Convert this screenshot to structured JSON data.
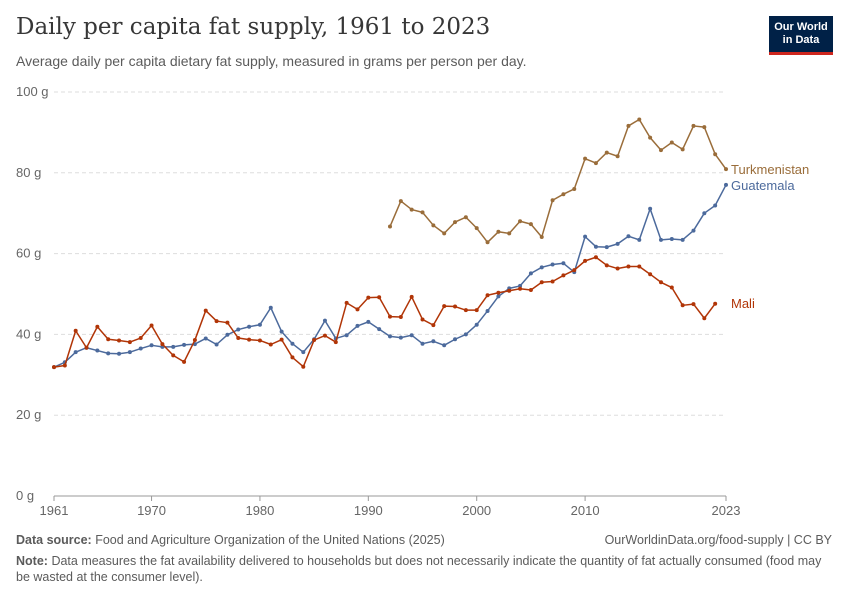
{
  "header": {
    "title": "Daily per capita fat supply, 1961 to 2023",
    "subtitle": "Average daily per capita dietary fat supply, measured in grams per person per day."
  },
  "logo": {
    "line1": "Our World",
    "line2": "in Data"
  },
  "footer": {
    "source_label": "Data source:",
    "source_text": "Food and Agriculture Organization of the United Nations (2025)",
    "link": "OurWorldinData.org/food-supply | CC BY",
    "note_label": "Note:",
    "note_text": "Data measures the fat availability delivered to households but does not necessarily indicate the quantity of fat actually consumed (food may be wasted at the consumer level)."
  },
  "chart_data": {
    "type": "line",
    "title": "Daily per capita fat supply, 1961 to 2023",
    "xlabel": "",
    "ylabel": "",
    "xlim": [
      1961,
      2023
    ],
    "ylim": [
      0,
      100
    ],
    "x_ticks": [
      "1961",
      "1970",
      "1980",
      "1990",
      "2000",
      "2010",
      "2023"
    ],
    "y_ticks": [
      "0 g",
      "20 g",
      "40 g",
      "60 g",
      "80 g",
      "100 g"
    ],
    "grid": "horizontal dashed",
    "legend": "labels at line ends",
    "series": [
      {
        "name": "Turkmenistan",
        "color": "#9a6d3a",
        "x": [
          1992,
          1993,
          1994,
          1995,
          1996,
          1997,
          1998,
          1999,
          2000,
          2001,
          2002,
          2003,
          2004,
          2005,
          2006,
          2007,
          2008,
          2009,
          2010,
          2011,
          2012,
          2013,
          2014,
          2015,
          2016,
          2017,
          2018,
          2019,
          2020,
          2021,
          2022,
          2023
        ],
        "values": [
          66.7,
          73.0,
          70.9,
          70.2,
          67.0,
          65.0,
          67.8,
          69.0,
          66.3,
          62.8,
          65.4,
          65.0,
          68.0,
          67.3,
          64.1,
          73.2,
          74.7,
          76.0,
          83.5,
          82.4,
          85.0,
          84.1,
          91.6,
          93.2,
          88.7,
          85.6,
          87.5,
          85.8,
          91.6,
          91.3,
          84.6,
          80.9
        ]
      },
      {
        "name": "Guatemala",
        "color": "#4c6a9c",
        "x": [
          1961,
          1962,
          1963,
          1964,
          1965,
          1966,
          1967,
          1968,
          1969,
          1970,
          1971,
          1972,
          1973,
          1974,
          1975,
          1976,
          1977,
          1978,
          1979,
          1980,
          1981,
          1982,
          1983,
          1984,
          1985,
          1986,
          1987,
          1988,
          1989,
          1990,
          1991,
          1992,
          1993,
          1994,
          1995,
          1996,
          1997,
          1998,
          1999,
          2000,
          2001,
          2002,
          2003,
          2004,
          2005,
          2006,
          2007,
          2008,
          2009,
          2010,
          2011,
          2012,
          2013,
          2014,
          2015,
          2016,
          2017,
          2018,
          2019,
          2020,
          2021,
          2022,
          2023
        ],
        "values": [
          31.9,
          33.1,
          35.6,
          36.7,
          36.0,
          35.3,
          35.2,
          35.6,
          36.5,
          37.3,
          36.9,
          36.9,
          37.4,
          37.6,
          39.0,
          37.5,
          39.9,
          41.2,
          41.9,
          42.4,
          46.6,
          40.7,
          37.7,
          35.6,
          38.8,
          43.4,
          39.0,
          39.8,
          42.1,
          43.1,
          41.3,
          39.5,
          39.2,
          39.8,
          37.7,
          38.3,
          37.3,
          38.8,
          40.0,
          42.4,
          45.8,
          49.4,
          51.4,
          52.0,
          55.1,
          56.6,
          57.3,
          57.6,
          55.4,
          64.2,
          61.7,
          61.6,
          62.4,
          64.3,
          63.4,
          71.1,
          63.4,
          63.6,
          63.4,
          65.7,
          70.0,
          71.9,
          77.0
        ]
      },
      {
        "name": "Mali",
        "color": "#b13507",
        "x": [
          1961,
          1962,
          1963,
          1964,
          1965,
          1966,
          1967,
          1968,
          1969,
          1970,
          1971,
          1972,
          1973,
          1974,
          1975,
          1976,
          1977,
          1978,
          1979,
          1980,
          1981,
          1982,
          1983,
          1984,
          1985,
          1986,
          1987,
          1988,
          1989,
          1990,
          1991,
          1992,
          1993,
          1994,
          1995,
          1996,
          1997,
          1998,
          1999,
          2000,
          2001,
          2002,
          2003,
          2004,
          2005,
          2006,
          2007,
          2008,
          2009,
          2010,
          2011,
          2012,
          2013,
          2014,
          2015,
          2016,
          2017,
          2018,
          2019,
          2020,
          2021,
          2022,
          2023
        ],
        "values": [
          31.9,
          32.3,
          40.9,
          36.7,
          41.9,
          38.8,
          38.5,
          38.1,
          39.1,
          42.2,
          37.6,
          34.8,
          33.2,
          38.6,
          45.9,
          43.3,
          42.9,
          39.1,
          38.7,
          38.5,
          37.5,
          38.7,
          34.3,
          32.0,
          38.6,
          39.7,
          38.1,
          47.8,
          46.2,
          49.1,
          49.2,
          44.4,
          44.3,
          49.3,
          43.7,
          42.3,
          47.0,
          46.9,
          46.0,
          46.0,
          49.7,
          50.3,
          50.8,
          51.3,
          51.0,
          52.9,
          53.1,
          54.6,
          55.9,
          58.2,
          59.1,
          57.1,
          56.3,
          56.8,
          56.8,
          54.9,
          52.9,
          51.6,
          47.2,
          47.5,
          44.0,
          47.6,
          null
        ]
      }
    ]
  }
}
